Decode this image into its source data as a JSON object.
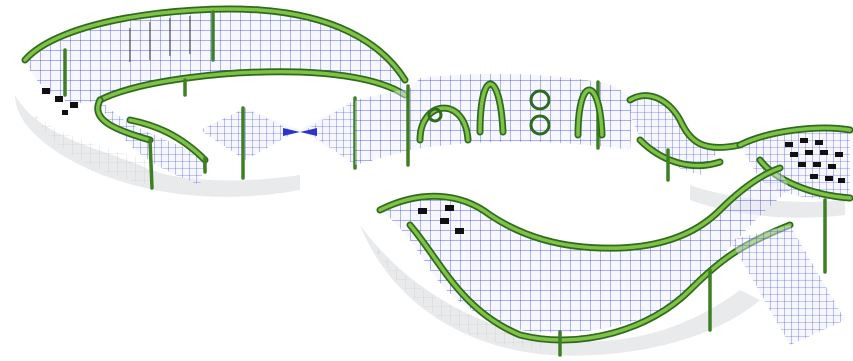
{
  "scene": {
    "subject": "net-climbing-playground-structure",
    "colors": {
      "frame_dark": "#2f6b1e",
      "frame_light": "#7fc245",
      "net": "#2b35c8",
      "panel_tile": "#111111",
      "shadow": "#d7d9dd",
      "background": "#ffffff"
    }
  }
}
